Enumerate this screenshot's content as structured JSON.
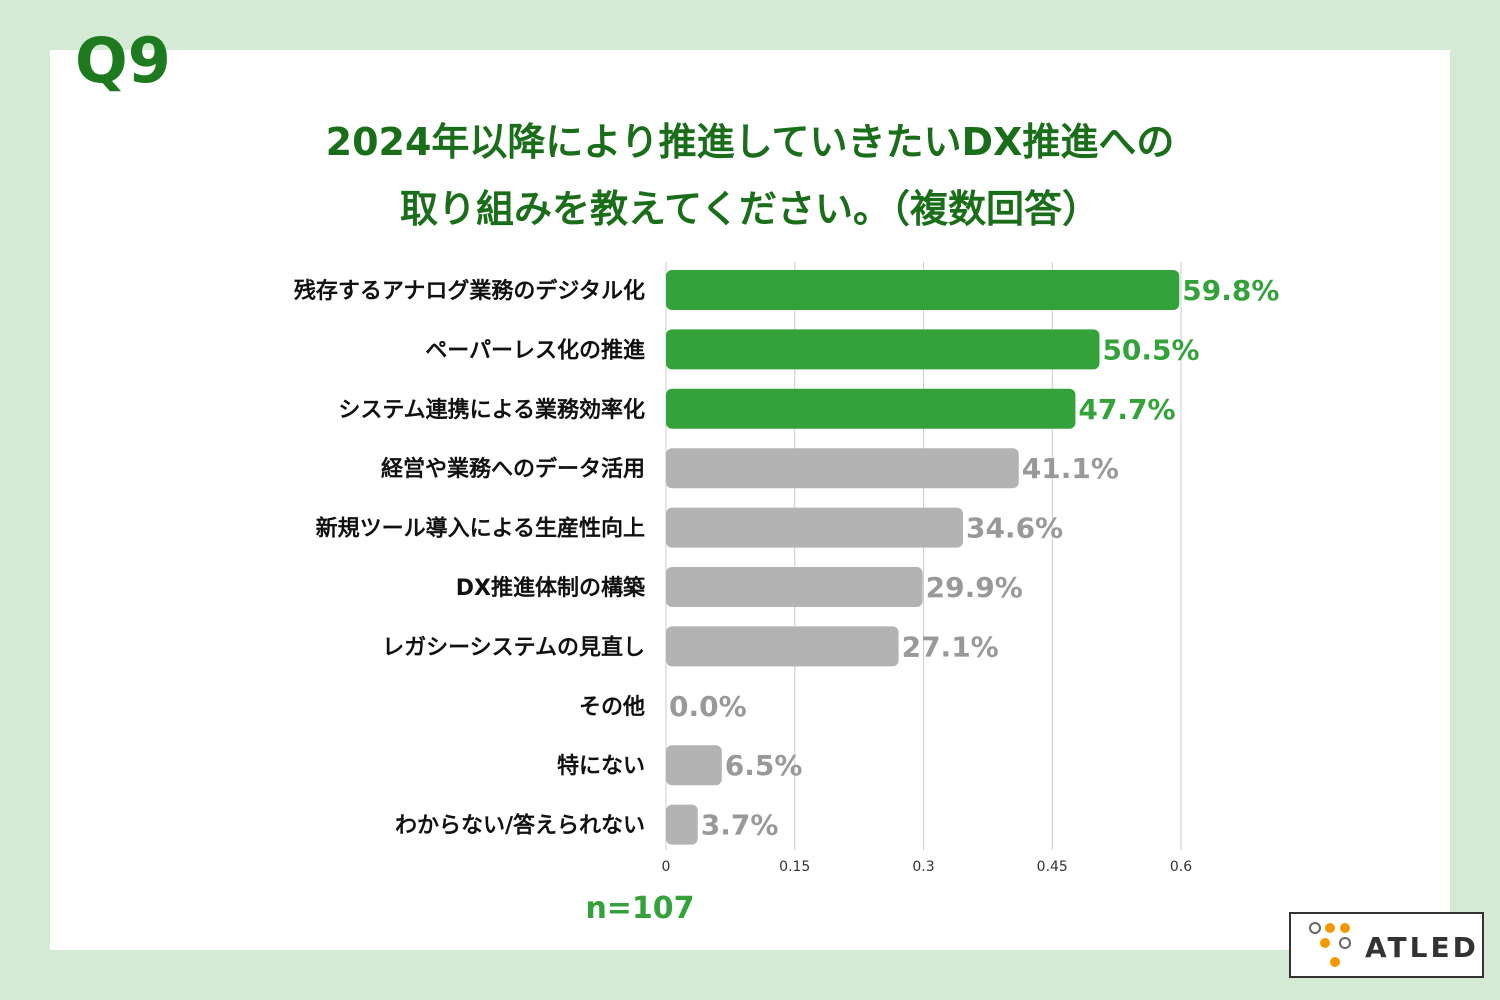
{
  "question_number": "Q9",
  "logo": "ATLED",
  "chart_data": {
    "type": "bar",
    "orientation": "horizontal",
    "title": [
      "2024年以降により推進していきたいDX推進への",
      "取り組みを教えてください。（複数回答）"
    ],
    "categories": [
      "残存するアナログ業務のデジタル化",
      "ペーパーレス化の推進",
      "システム連携による業務効率化",
      "経営や業務へのデータ活用",
      "新規ツール導入による生産性向上",
      "DX推進体制の構築",
      "レガシーシステムの見直し",
      "その他",
      "特にない",
      "わからない/答えられない"
    ],
    "values": [
      0.598,
      0.505,
      0.477,
      0.411,
      0.346,
      0.299,
      0.271,
      0.0,
      0.065,
      0.037
    ],
    "value_labels": [
      "59.8%",
      "50.5%",
      "47.7%",
      "41.1%",
      "34.6%",
      "29.9%",
      "27.1%",
      "0.0%",
      "6.5%",
      "3.7%"
    ],
    "colors": [
      "#34a23a",
      "#34a23a",
      "#34a23a",
      "#b3b3b3",
      "#b3b3b3",
      "#b3b3b3",
      "#b3b3b3",
      "#b3b3b3",
      "#b3b3b3",
      "#b3b3b3"
    ],
    "label_colors": [
      "#34a23a",
      "#34a23a",
      "#34a23a",
      "#999999",
      "#999999",
      "#999999",
      "#999999",
      "#999999",
      "#999999",
      "#999999"
    ],
    "xlim": [
      0,
      0.6
    ],
    "xticks": [
      0,
      0.15,
      0.3,
      0.45,
      0.6
    ],
    "grid": true,
    "note": "n=107"
  }
}
